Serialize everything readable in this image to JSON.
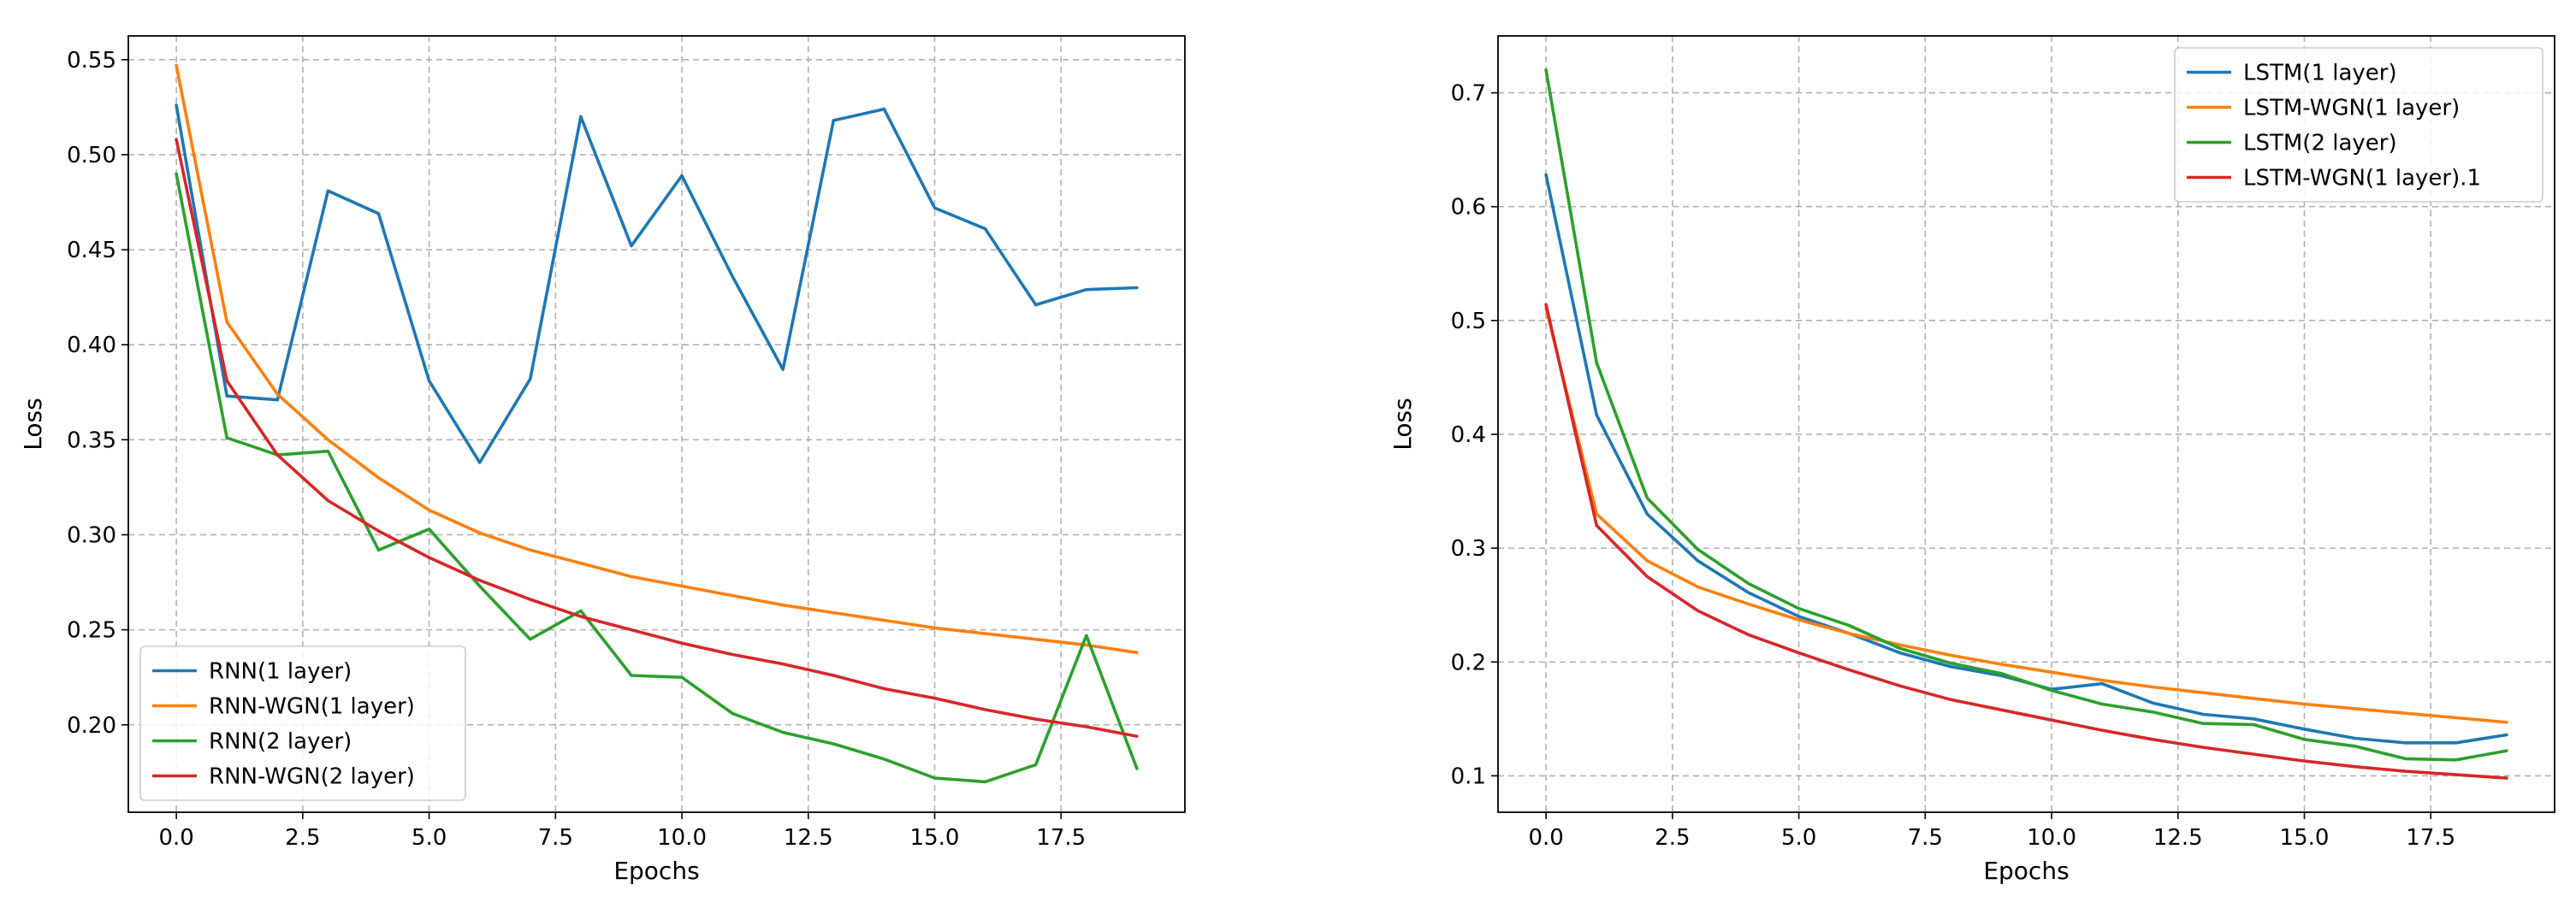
{
  "chart_data": [
    {
      "type": "line",
      "xlabel": "Epochs",
      "ylabel": "Loss",
      "xlim": [
        -0.95,
        19.95
      ],
      "ylim": [
        0.154,
        0.5625
      ],
      "xticks": [
        0.0,
        2.5,
        5.0,
        7.5,
        10.0,
        12.5,
        15.0,
        17.5
      ],
      "xtick_labels": [
        "0.0",
        "2.5",
        "5.0",
        "7.5",
        "10.0",
        "12.5",
        "15.0",
        "17.5"
      ],
      "yticks": [
        0.2,
        0.25,
        0.3,
        0.35,
        0.4,
        0.45,
        0.5,
        0.55
      ],
      "ytick_labels": [
        "0.20",
        "0.25",
        "0.30",
        "0.35",
        "0.40",
        "0.45",
        "0.50",
        "0.55"
      ],
      "grid": true,
      "legend_position": "lower-left",
      "x": [
        0,
        1,
        2,
        3,
        4,
        5,
        6,
        7,
        8,
        9,
        10,
        11,
        12,
        13,
        14,
        15,
        16,
        17,
        18,
        19
      ],
      "series": [
        {
          "name": "RNN(1 layer)",
          "color": "#1f77b4",
          "values": [
            0.526,
            0.373,
            0.371,
            0.481,
            0.469,
            0.381,
            0.338,
            0.382,
            0.52,
            0.452,
            0.489,
            0.436,
            0.387,
            0.518,
            0.524,
            0.472,
            0.461,
            0.421,
            0.429,
            0.43
          ]
        },
        {
          "name": "RNN-WGN(1 layer)",
          "color": "#ff7f0e",
          "values": [
            0.547,
            0.412,
            0.374,
            0.35,
            0.33,
            0.313,
            0.301,
            0.292,
            0.285,
            0.278,
            0.273,
            0.268,
            0.263,
            0.259,
            0.255,
            0.251,
            0.248,
            0.245,
            0.242,
            0.238
          ]
        },
        {
          "name": "RNN(2 layer)",
          "color": "#2ca02c",
          "values": [
            0.49,
            0.351,
            0.342,
            0.344,
            0.292,
            0.303,
            0.273,
            0.245,
            0.26,
            0.226,
            0.225,
            0.206,
            0.196,
            0.19,
            0.182,
            0.172,
            0.17,
            0.179,
            0.247,
            0.177
          ]
        },
        {
          "name": "RNN-WGN(2 layer)",
          "color": "#d62728",
          "values": [
            0.508,
            0.381,
            0.342,
            0.318,
            0.302,
            0.288,
            0.276,
            0.266,
            0.257,
            0.25,
            0.243,
            0.237,
            0.232,
            0.226,
            0.219,
            0.214,
            0.208,
            0.203,
            0.199,
            0.194
          ]
        }
      ]
    },
    {
      "type": "line",
      "xlabel": "Epochs",
      "ylabel": "Loss",
      "xlim": [
        -0.95,
        19.95
      ],
      "ylim": [
        0.068,
        0.75
      ],
      "xticks": [
        0.0,
        2.5,
        5.0,
        7.5,
        10.0,
        12.5,
        15.0,
        17.5
      ],
      "xtick_labels": [
        "0.0",
        "2.5",
        "5.0",
        "7.5",
        "10.0",
        "12.5",
        "15.0",
        "17.5"
      ],
      "yticks": [
        0.1,
        0.2,
        0.3,
        0.4,
        0.5,
        0.6,
        0.7
      ],
      "ytick_labels": [
        "0.1",
        "0.2",
        "0.3",
        "0.4",
        "0.5",
        "0.6",
        "0.7"
      ],
      "grid": true,
      "legend_position": "upper-right",
      "x": [
        0,
        1,
        2,
        3,
        4,
        5,
        6,
        7,
        8,
        9,
        10,
        11,
        12,
        13,
        14,
        15,
        16,
        17,
        18,
        19
      ],
      "series": [
        {
          "name": "LSTM(1 layer)",
          "color": "#1f77b4",
          "values": [
            0.628,
            0.417,
            0.33,
            0.289,
            0.261,
            0.24,
            0.225,
            0.208,
            0.196,
            0.188,
            0.176,
            0.181,
            0.164,
            0.154,
            0.15,
            0.141,
            0.133,
            0.129,
            0.129,
            0.136
          ]
        },
        {
          "name": "LSTM-WGN(1 layer)",
          "color": "#ff7f0e",
          "values": [
            0.511,
            0.33,
            0.289,
            0.266,
            0.251,
            0.237,
            0.225,
            0.215,
            0.206,
            0.198,
            0.191,
            0.184,
            0.178,
            0.173,
            0.168,
            0.163,
            0.159,
            0.155,
            0.151,
            0.147
          ]
        },
        {
          "name": "LSTM(2 layer)",
          "color": "#2ca02c",
          "values": [
            0.72,
            0.463,
            0.344,
            0.299,
            0.269,
            0.247,
            0.232,
            0.212,
            0.199,
            0.19,
            0.175,
            0.163,
            0.156,
            0.146,
            0.145,
            0.132,
            0.126,
            0.115,
            0.114,
            0.122
          ]
        },
        {
          "name": "LSTM-WGN(1 layer).1",
          "color": "#d62728",
          "values": [
            0.514,
            0.32,
            0.275,
            0.245,
            0.224,
            0.208,
            0.193,
            0.179,
            0.167,
            0.158,
            0.149,
            0.14,
            0.132,
            0.125,
            0.119,
            0.113,
            0.108,
            0.104,
            0.101,
            0.098
          ]
        }
      ]
    }
  ]
}
